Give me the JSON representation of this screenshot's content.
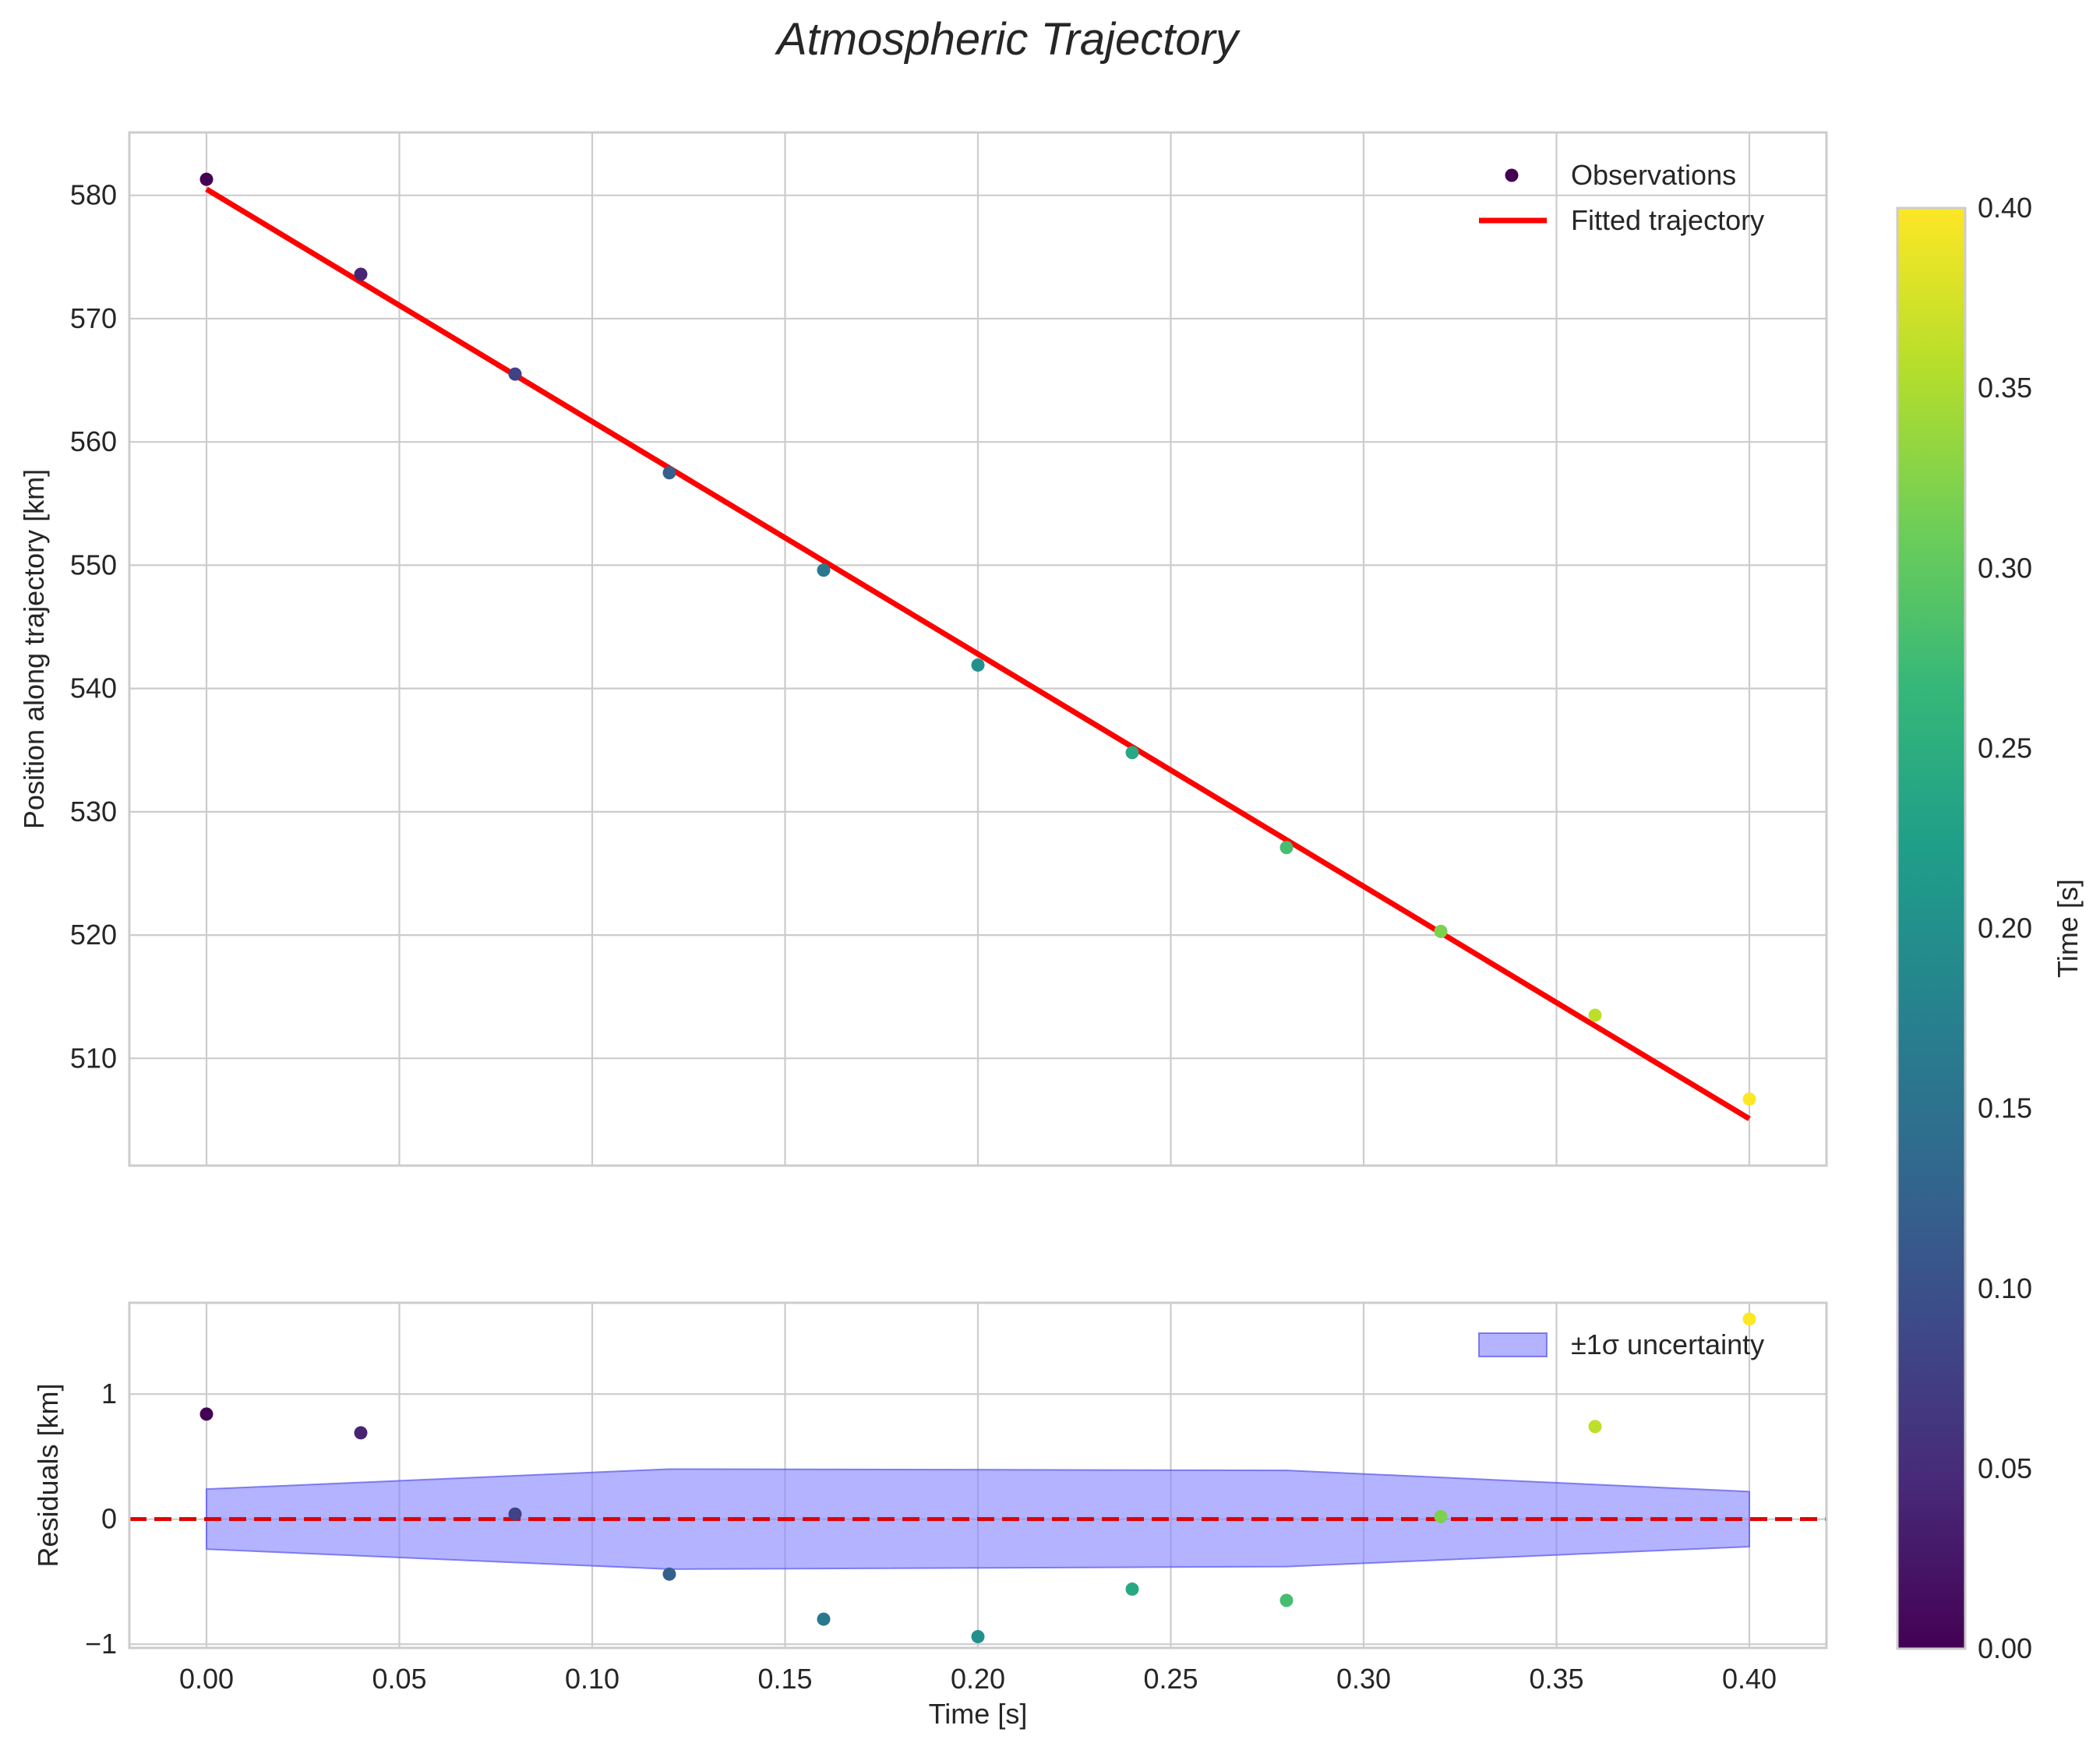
{
  "figure": {
    "title": "Atmospheric Trajectory"
  },
  "chart_data": [
    {
      "type": "scatter+line",
      "title": "Atmospheric Trajectory",
      "xlabel": "",
      "ylabel": "Position along trajectory [km]",
      "xlim": [
        -0.02,
        0.42
      ],
      "ylim": [
        501.3,
        585.1
      ],
      "xticks": [
        0.0,
        0.05,
        0.1,
        0.15,
        0.2,
        0.25,
        0.3,
        0.35,
        0.4
      ],
      "xticklabels_shown": false,
      "yticks": [
        510,
        520,
        530,
        540,
        550,
        560,
        570,
        580
      ],
      "grid": true,
      "legend_position": "top-right",
      "series": [
        {
          "name": "Observations",
          "kind": "scatter",
          "color_by": "time",
          "x": [
            0.0,
            0.04,
            0.08,
            0.12,
            0.16,
            0.2,
            0.24,
            0.28,
            0.32,
            0.36,
            0.4
          ],
          "y": [
            581.3,
            573.6,
            565.5,
            557.5,
            549.6,
            541.9,
            534.8,
            527.1,
            520.3,
            513.5,
            506.7
          ]
        },
        {
          "name": "Fitted trajectory",
          "kind": "line",
          "color": "#ff0000",
          "x": [
            0.0,
            0.4
          ],
          "y": [
            580.5,
            505.1
          ]
        }
      ]
    },
    {
      "type": "scatter+band",
      "xlabel": "Time [s]",
      "ylabel": "Residuals [km]",
      "xlim": [
        -0.02,
        0.42
      ],
      "ylim": [
        -1.03,
        1.73
      ],
      "xticks": [
        0.0,
        0.05,
        0.1,
        0.15,
        0.2,
        0.25,
        0.3,
        0.35,
        0.4
      ],
      "xticklabels": [
        "0.00",
        "0.05",
        "0.10",
        "0.15",
        "0.20",
        "0.25",
        "0.30",
        "0.35",
        "0.40"
      ],
      "yticks": [
        -1,
        0,
        1
      ],
      "yticklabels": [
        "−1",
        "0",
        "1"
      ],
      "grid": true,
      "legend_position": "top-right",
      "reference_line": {
        "y": 0,
        "style": "dashed",
        "color": "#dd0000"
      },
      "band": {
        "name": "±1σ uncertainty",
        "color": "#8080ff",
        "x": [
          0.0,
          0.12,
          0.28,
          0.4
        ],
        "upper": [
          0.24,
          0.4,
          0.39,
          0.22
        ],
        "lower": [
          -0.24,
          -0.4,
          -0.38,
          -0.22
        ]
      },
      "series": [
        {
          "name": "Residuals",
          "kind": "scatter",
          "color_by": "time",
          "x": [
            0.0,
            0.04,
            0.08,
            0.12,
            0.16,
            0.2,
            0.24,
            0.28,
            0.32,
            0.36,
            0.4
          ],
          "y": [
            0.84,
            0.69,
            0.04,
            -0.44,
            -0.8,
            -0.94,
            -0.56,
            -0.65,
            0.02,
            0.74,
            1.6
          ]
        }
      ]
    }
  ],
  "colorbar": {
    "label": "Time [s]",
    "colormap": "viridis",
    "min": 0.0,
    "max": 0.4,
    "ticks": [
      0.0,
      0.05,
      0.1,
      0.15,
      0.2,
      0.25,
      0.3,
      0.35,
      0.4
    ],
    "ticklabels": [
      "0.00",
      "0.05",
      "0.10",
      "0.15",
      "0.20",
      "0.25",
      "0.30",
      "0.35",
      "0.40"
    ],
    "stops": [
      "#440154",
      "#482878",
      "#3e4989",
      "#31688e",
      "#26828e",
      "#1f9e89",
      "#35b779",
      "#6ece58",
      "#b5de2b",
      "#fde725"
    ]
  }
}
